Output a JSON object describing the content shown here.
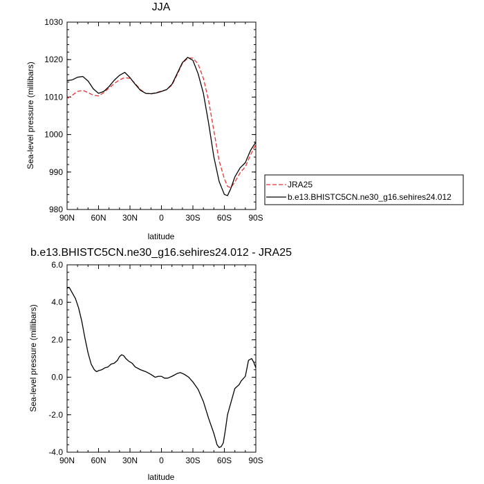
{
  "chart_data": [
    {
      "type": "line",
      "title": "JJA",
      "xlabel": "latitude",
      "ylabel": "Sea-level pressure (millibars)",
      "xlim": [
        -90,
        90
      ],
      "ylim": [
        980,
        1030
      ],
      "x_ticks": [
        -90,
        -60,
        -30,
        0,
        30,
        60,
        90
      ],
      "x_tick_labels": [
        "90N",
        "60N",
        "30N",
        "0",
        "30S",
        "60S",
        "90S"
      ],
      "y_ticks": [
        980,
        990,
        1000,
        1010,
        1020,
        1030
      ],
      "y_tick_labels": [
        "980",
        "990",
        "1000",
        "1010",
        "1020",
        "1030"
      ],
      "legend_position": "right",
      "series": [
        {
          "name": "JRA25",
          "color": "#e8312f",
          "dash": "dashed",
          "x": [
            -90,
            -85,
            -80,
            -75,
            -70,
            -65,
            -60,
            -55,
            -50,
            -45,
            -40,
            -35,
            -30,
            -25,
            -20,
            -15,
            -10,
            -5,
            0,
            5,
            10,
            15,
            20,
            25,
            30,
            35,
            40,
            45,
            50,
            55,
            60,
            63,
            66,
            70,
            75,
            80,
            85,
            90
          ],
          "values": [
            1009.6,
            1010.5,
            1011.5,
            1011.8,
            1011.2,
            1010.5,
            1010.3,
            1011.2,
            1012.4,
            1013.6,
            1014.6,
            1015.2,
            1015.0,
            1013.6,
            1012.0,
            1011.0,
            1010.8,
            1011.2,
            1011.6,
            1012.0,
            1013.2,
            1016.0,
            1019.0,
            1020.4,
            1020.4,
            1018.8,
            1015.0,
            1009.0,
            1001.0,
            993.0,
            988.2,
            986.2,
            985.8,
            987.3,
            989.8,
            991.4,
            994.6,
            997.4
          ]
        },
        {
          "name": "b.e13.BHISTC5CN.ne30_g16.sehires24.012",
          "color": "#000000",
          "dash": "solid",
          "x": [
            -90,
            -85,
            -80,
            -75,
            -70,
            -65,
            -60,
            -55,
            -50,
            -45,
            -40,
            -35,
            -30,
            -25,
            -20,
            -15,
            -10,
            -5,
            0,
            5,
            10,
            15,
            20,
            25,
            30,
            35,
            40,
            45,
            50,
            55,
            60,
            63,
            66,
            70,
            75,
            80,
            85,
            90
          ],
          "values": [
            1014.4,
            1014.6,
            1015.3,
            1015.5,
            1014.3,
            1012.2,
            1011.0,
            1011.5,
            1012.8,
            1014.5,
            1015.8,
            1016.6,
            1015.2,
            1013.4,
            1011.8,
            1011.0,
            1010.9,
            1011.1,
            1011.5,
            1012.0,
            1013.4,
            1016.3,
            1019.2,
            1020.6,
            1019.8,
            1016.2,
            1011.0,
            1003.0,
            994.0,
            987.5,
            984.0,
            983.7,
            985.5,
            988.7,
            991.1,
            992.5,
            995.8,
            998.0
          ]
        }
      ]
    },
    {
      "type": "line",
      "title": "b.e13.BHISTC5CN.ne30_g16.sehires24.012 - JRA25",
      "xlabel": "latitude",
      "ylabel": "Sea-level pressure (millibars)",
      "xlim": [
        -90,
        90
      ],
      "ylim": [
        -4.0,
        6.0
      ],
      "x_ticks": [
        -90,
        -60,
        -30,
        0,
        30,
        60,
        90
      ],
      "x_tick_labels": [
        "90N",
        "60N",
        "30N",
        "0",
        "30S",
        "60S",
        "90S"
      ],
      "y_ticks": [
        -4,
        -2,
        0,
        2,
        4,
        6
      ],
      "y_tick_labels": [
        "-4.0",
        "-2.0",
        "0.0",
        "2.0",
        "4.0",
        "6.0"
      ],
      "series": [
        {
          "color": "#000000",
          "dash": "solid",
          "x": [
            -90,
            -88,
            -85,
            -82,
            -79,
            -76,
            -73,
            -70,
            -67,
            -64,
            -62,
            -60,
            -57,
            -54,
            -51,
            -48,
            -45,
            -42,
            -40,
            -38,
            -36,
            -34,
            -31,
            -28,
            -25,
            -20,
            -15,
            -10,
            -6,
            -3,
            0,
            3,
            6,
            10,
            15,
            18,
            22,
            26,
            30,
            35,
            40,
            45,
            50,
            53,
            55,
            57,
            59,
            61,
            63,
            66,
            70,
            74,
            76,
            80,
            83,
            86,
            88,
            90
          ],
          "values": [
            4.75,
            4.8,
            4.5,
            4.2,
            3.7,
            3.0,
            2.1,
            1.3,
            0.7,
            0.4,
            0.3,
            0.35,
            0.4,
            0.5,
            0.55,
            0.7,
            0.75,
            0.9,
            1.1,
            1.2,
            1.15,
            1.0,
            0.85,
            0.75,
            0.55,
            0.4,
            0.3,
            0.15,
            0.0,
            0.05,
            0.05,
            -0.05,
            -0.05,
            0.05,
            0.2,
            0.25,
            0.15,
            0.0,
            -0.25,
            -0.65,
            -1.3,
            -2.2,
            -3.0,
            -3.6,
            -3.75,
            -3.7,
            -3.5,
            -2.8,
            -2.0,
            -1.4,
            -0.6,
            -0.4,
            -0.2,
            0.05,
            0.9,
            1.0,
            0.8,
            0.5
          ]
        }
      ]
    }
  ],
  "legend": {
    "entries": [
      {
        "label": "JRA25",
        "color": "#e8312f",
        "dash": "dashed"
      },
      {
        "label": "b.e13.BHISTC5CN.ne30_g16.sehires24.012",
        "color": "#000000",
        "dash": "solid"
      }
    ]
  }
}
